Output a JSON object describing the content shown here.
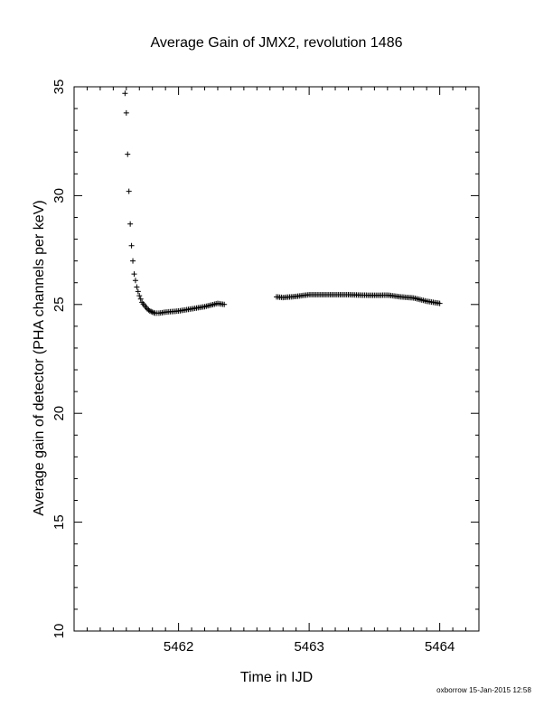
{
  "chart_data": {
    "type": "scatter",
    "title": "Average Gain of JMX2, revolution 1486",
    "xlabel": "Time in IJD",
    "ylabel": "Average gain of detector (PHA channels per keV)",
    "xlim": [
      5461.2,
      5464.3
    ],
    "ylim": [
      10,
      35
    ],
    "x_ticks": [
      5462,
      5463,
      5464
    ],
    "x_tick_labels": [
      "5462",
      "5463",
      "5464"
    ],
    "y_ticks": [
      10,
      15,
      20,
      25,
      30,
      35
    ],
    "y_tick_labels": [
      "10",
      "15",
      "20",
      "25",
      "30",
      "35"
    ],
    "grid": false,
    "marker": "+",
    "series": [
      {
        "x": [
          5461.59,
          5461.6,
          5461.61,
          5461.62,
          5461.63,
          5461.64,
          5461.65,
          5461.66,
          5461.67,
          5461.68,
          5461.7,
          5461.72,
          5461.74,
          5461.76,
          5461.78,
          5461.8,
          5461.82,
          5461.85,
          5461.9,
          5462.0,
          5462.1,
          5462.2,
          5462.3,
          5462.35,
          5462.75,
          5462.8,
          5462.9,
          5463.0,
          5463.1,
          5463.2,
          5463.3,
          5463.4,
          5463.5,
          5463.6,
          5463.7,
          5463.8,
          5463.9,
          5464.0
        ],
        "y": [
          34.7,
          33.8,
          31.9,
          30.2,
          28.7,
          27.7,
          27.0,
          26.4,
          26.1,
          25.8,
          25.4,
          25.1,
          24.95,
          24.8,
          24.7,
          24.65,
          24.6,
          24.6,
          24.65,
          24.7,
          24.8,
          24.9,
          25.05,
          25.0,
          25.35,
          25.32,
          25.37,
          25.45,
          25.45,
          25.45,
          25.45,
          25.43,
          25.42,
          25.43,
          25.35,
          25.3,
          25.15,
          25.05
        ]
      }
    ]
  },
  "footer": "oxborrow 15-Jan-2015 12:58"
}
